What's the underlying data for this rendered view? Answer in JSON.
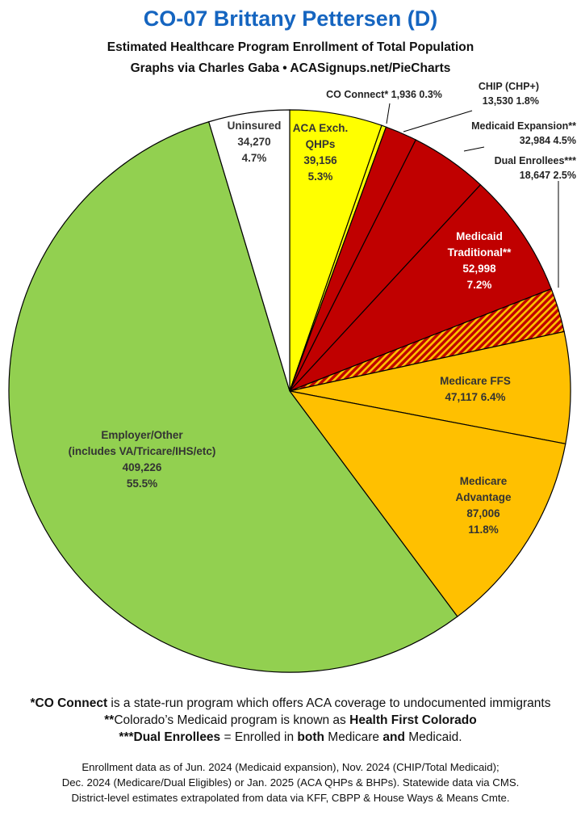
{
  "title": "CO-07 Brittany Pettersen (D)",
  "subtitle_1": "Estimated Healthcare Program Enrollment of Total Population",
  "subtitle_2": "Graphs via Charles Gaba   •   ACASignups.net/PieCharts",
  "chart_data": {
    "type": "pie",
    "title": "CO-07 Brittany Pettersen (D)",
    "slices": [
      {
        "name": "ACA Exch. QHPs",
        "label_lines": [
          "ACA Exch.",
          "QHPs",
          "39,156",
          "5.3%"
        ],
        "value": 39156,
        "percent": 5.3,
        "color": "#ffff00",
        "pattern": "solid",
        "label_mode": "inside"
      },
      {
        "name": "CO Connect*",
        "label_lines": [
          "CO Connect* 1,936 0.3%"
        ],
        "value": 1936,
        "percent": 0.3,
        "color": "#ffff00",
        "pattern": "solid",
        "label_mode": "outside"
      },
      {
        "name": "CHIP (CHP+)",
        "label_lines": [
          "CHIP (CHP+)",
          "13,530 1.8%"
        ],
        "value": 13530,
        "percent": 1.8,
        "color": "#c00000",
        "pattern": "solid",
        "label_mode": "outside"
      },
      {
        "name": "Medicaid Expansion**",
        "label_lines": [
          "Medicaid Expansion**",
          "32,984 4.5%"
        ],
        "value": 32984,
        "percent": 4.5,
        "color": "#c00000",
        "pattern": "solid",
        "label_mode": "outside"
      },
      {
        "name": "Medicaid Traditional**",
        "label_lines": [
          "Medicaid",
          "Traditional**",
          "52,998",
          "7.2%"
        ],
        "value": 52998,
        "percent": 7.2,
        "color": "#c00000",
        "pattern": "solid",
        "label_mode": "inside",
        "text_color": "#ffffff"
      },
      {
        "name": "Dual Enrollees***",
        "label_lines": [
          "Dual Enrollees***",
          "18,647 2.5%"
        ],
        "value": 18647,
        "percent": 2.5,
        "color": "#c00000",
        "pattern": "hatch",
        "hatch_color": "#ffc000",
        "label_mode": "outside"
      },
      {
        "name": "Medicare FFS",
        "label_lines": [
          "Medicare FFS",
          "47,117 6.4%"
        ],
        "value": 47117,
        "percent": 6.4,
        "color": "#ffc000",
        "pattern": "solid",
        "label_mode": "inside"
      },
      {
        "name": "Medicare Advantage",
        "label_lines": [
          "Medicare",
          "Advantage",
          "87,006",
          "11.8%"
        ],
        "value": 87006,
        "percent": 11.8,
        "color": "#ffc000",
        "pattern": "solid",
        "label_mode": "inside"
      },
      {
        "name": "Employer/Other (includes VA/Tricare/IHS/etc)",
        "label_lines": [
          "Employer/Other",
          "(includes VA/Tricare/IHS/etc)",
          "409,226",
          "55.5%"
        ],
        "value": 409226,
        "percent": 55.5,
        "color": "#92d050",
        "pattern": "solid",
        "label_mode": "inside"
      },
      {
        "name": "Uninsured",
        "label_lines": [
          "Uninsured",
          "34,270",
          "4.7%"
        ],
        "value": 34270,
        "percent": 4.7,
        "color": "#ffffff",
        "pattern": "solid",
        "label_mode": "inside"
      }
    ]
  },
  "footnotes": {
    "fn1_bold": "*CO Connect",
    "fn1_rest": " is a state-run program which offers ACA coverage to undocumented immigrants",
    "fn2_a": "**",
    "fn2_b": "Colorado’s Medicaid program is known as ",
    "fn2_c": "Health First Colorado",
    "fn3_a": "***Dual Enrollees",
    "fn3_b": " = Enrolled in ",
    "fn3_c": "both",
    "fn3_d": " Medicare ",
    "fn3_e": "and",
    "fn3_f": " Medicaid."
  },
  "sources": {
    "line1": "Enrollment data as of Jun. 2024 (Medicaid expansion), Nov. 2024 (CHIP/Total Medicaid);",
    "line2": "Dec. 2024 (Medicare/Dual Eligibles) or Jan. 2025 (ACA QHPs & BHPs). Statewide data via CMS.",
    "line3": "District-level estimates extrapolated from data via KFF, CBPP & House Ways & Means Cmte."
  }
}
